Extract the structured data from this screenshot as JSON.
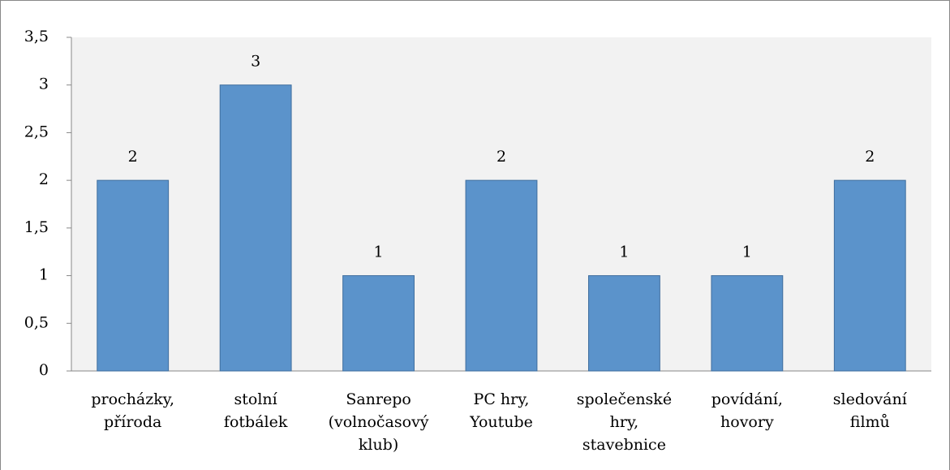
{
  "chart_data": {
    "type": "bar",
    "categories": [
      [
        "procházky,",
        "příroda"
      ],
      [
        "stolní",
        "fotbálek"
      ],
      [
        "Sanrepo",
        "(volnočasový",
        "klub)"
      ],
      [
        "PC hry,",
        "Youtube"
      ],
      [
        "společenské",
        "hry,",
        "stavebnice"
      ],
      [
        "povídání,",
        "hovory"
      ],
      [
        "sledování",
        "filmů"
      ]
    ],
    "values": [
      2,
      3,
      1,
      2,
      1,
      1,
      2
    ],
    "color": "#5b93cb",
    "ylim": [
      0,
      3.5
    ],
    "yticks": [
      0,
      {
        "value": 0.5,
        "label": "0,5"
      },
      1,
      {
        "value": 1.5,
        "label": "1,5"
      },
      2,
      {
        "value": 2.5,
        "label": "2,5"
      },
      3,
      {
        "value": 3.5,
        "label": "3,5"
      }
    ],
    "grid": false
  }
}
